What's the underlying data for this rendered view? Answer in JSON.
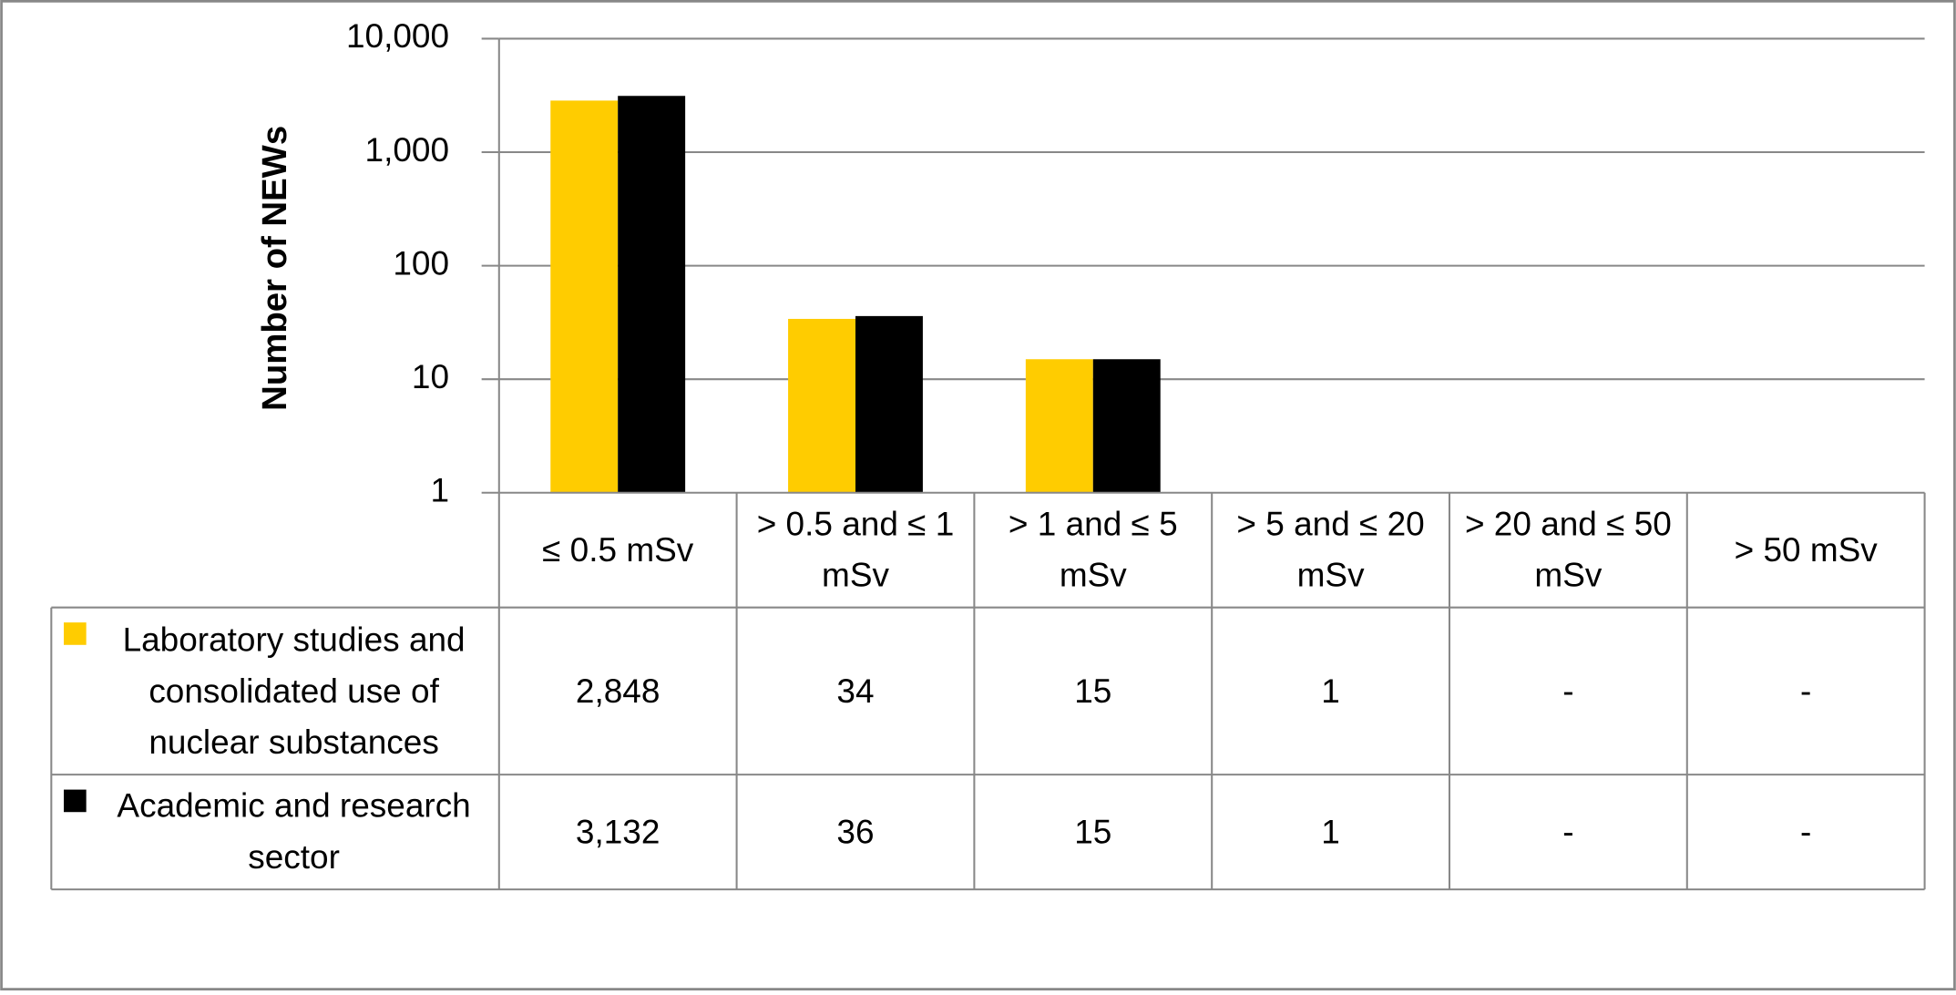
{
  "chart_data": {
    "type": "bar",
    "y_label": "Number of NEWs",
    "categories": [
      "≤ 0.5 mSv",
      "> 0.5 and ≤ 1 mSv",
      "> 1 and ≤ 5 mSv",
      "> 5 and ≤ 20 mSv",
      "> 20 and ≤ 50 mSv",
      "> 50 mSv"
    ],
    "series": [
      {
        "name": "Laboratory studies and consolidated use of nuclear substances",
        "color": "#FFCC00",
        "values": [
          2848,
          34,
          15,
          1,
          null,
          null
        ],
        "value_labels": [
          "2,848",
          "34",
          "15",
          "1",
          "-",
          "-"
        ]
      },
      {
        "name": "Academic and research sector",
        "color": "#000000",
        "values": [
          3132,
          36,
          15,
          1,
          null,
          null
        ],
        "value_labels": [
          "3,132",
          "36",
          "15",
          "1",
          "-",
          "-"
        ]
      }
    ],
    "log_scale": true,
    "ylim": [
      1,
      10000
    ],
    "yticks": [
      1,
      10,
      100,
      {
        "value": 1000,
        "label": "1,000"
      },
      {
        "value": 10000,
        "label": "10,000"
      }
    ],
    "grid": true
  }
}
